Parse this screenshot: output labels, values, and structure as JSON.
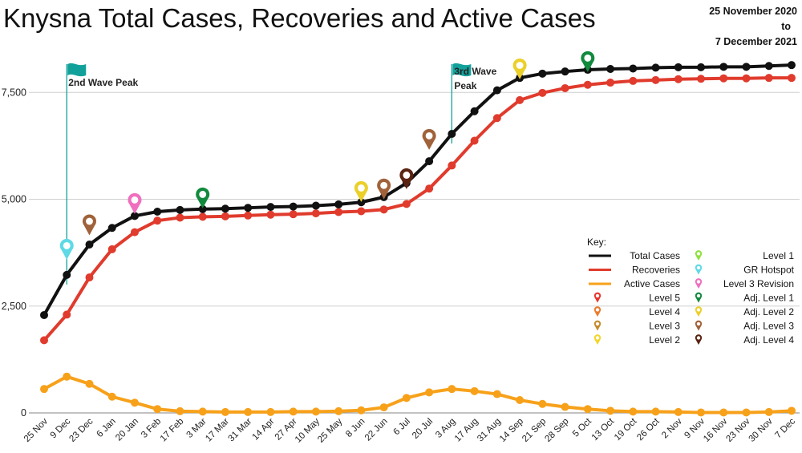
{
  "chart_data": {
    "type": "line",
    "title": "Knysna Total Cases, Recoveries and Active Cases",
    "date_range": {
      "start": "25 November 2020",
      "to": "to",
      "end": "7 December 2021"
    },
    "categories": [
      "25 Nov",
      "9 Dec",
      "23 Dec",
      "6 Jan",
      "20 Jan",
      "3 Feb",
      "17 Feb",
      "3 Mar",
      "17 Mar",
      "31 Mar",
      "14 Apr",
      "27 Apr",
      "10 May",
      "25 May",
      "8 Jun",
      "22 Jun",
      "6 Jul",
      "20 Jul",
      "3 Aug",
      "17 Aug",
      "31 Aug",
      "14 Sep",
      "21 Sep",
      "28 Sep",
      "5 Oct",
      "13 Oct",
      "19 Oct",
      "26 Oct",
      "2 Nov",
      "9 Nov",
      "16 Nov",
      "23 Nov",
      "30 Nov",
      "7 Dec"
    ],
    "yticks": [
      0,
      2500,
      5000,
      7500
    ],
    "ytick_labels": [
      "0",
      "2,500",
      "5,000",
      "7,500"
    ],
    "ylim": [
      0,
      8500
    ],
    "grid": "horizontal",
    "series": [
      {
        "name": "Total Cases",
        "color": "#111111",
        "values": [
          2290,
          3230,
          3940,
          4330,
          4610,
          4710,
          4750,
          4770,
          4780,
          4800,
          4820,
          4830,
          4850,
          4880,
          4930,
          5050,
          5380,
          5890,
          6530,
          7060,
          7550,
          7840,
          7940,
          7990,
          8030,
          8050,
          8060,
          8080,
          8090,
          8090,
          8100,
          8100,
          8120,
          8140
        ]
      },
      {
        "name": "Recoveries",
        "color": "#e03b2d",
        "values": [
          1700,
          2300,
          3170,
          3830,
          4230,
          4500,
          4570,
          4590,
          4600,
          4620,
          4640,
          4650,
          4670,
          4700,
          4720,
          4760,
          4890,
          5250,
          5790,
          6370,
          6900,
          7320,
          7490,
          7600,
          7680,
          7730,
          7770,
          7790,
          7810,
          7820,
          7830,
          7830,
          7840,
          7840
        ]
      },
      {
        "name": "Active Cases",
        "color": "#f7a11a",
        "values": [
          560,
          850,
          680,
          380,
          240,
          90,
          40,
          30,
          20,
          20,
          20,
          30,
          30,
          40,
          60,
          130,
          350,
          480,
          560,
          510,
          440,
          300,
          210,
          140,
          90,
          50,
          30,
          30,
          20,
          10,
          10,
          10,
          20,
          50
        ]
      }
    ],
    "annotations": [
      {
        "label": "2nd Wave Peak",
        "category": "9 Dec",
        "color": "#12a19a"
      },
      {
        "label": "3rd Wave Peak",
        "category": "3 Aug",
        "color": "#12a19a"
      }
    ],
    "markers": [
      {
        "level": "GR Hotspot",
        "category": "9 Dec",
        "value": 3850
      },
      {
        "level": "Adj. Level 3",
        "category": "23 Dec",
        "value": 4420
      },
      {
        "level": "Level 3 Revision",
        "category": "20 Jan",
        "value": 4920
      },
      {
        "level": "Adj. Level 1",
        "category": "3 Mar",
        "value": 5050
      },
      {
        "level": "Adj. Level 2",
        "category": "8 Jun",
        "value": 5200
      },
      {
        "level": "Adj. Level 3",
        "category": "22 Jun",
        "value": 5260
      },
      {
        "level": "Adj. Level 4",
        "category": "6 Jul",
        "value": 5500
      },
      {
        "level": "Adj. Level 3",
        "category": "20 Jul",
        "value": 6420
      },
      {
        "level": "Adj. Level 2",
        "category": "14 Sep",
        "value": 8070
      },
      {
        "level": "Adj. Level 1",
        "category": "5 Oct",
        "value": 8240
      }
    ],
    "legend": {
      "title": "Key:",
      "placement": "right",
      "left_items": [
        {
          "label": "Total Cases",
          "kind": "line",
          "color": "#111111"
        },
        {
          "label": "Recoveries",
          "kind": "line",
          "color": "#e03b2d"
        },
        {
          "label": "Active Cases",
          "kind": "line",
          "color": "#f7a11a"
        },
        {
          "label": "Level 5",
          "kind": "pin",
          "color": "#e8342a"
        },
        {
          "label": "Level 4",
          "kind": "pin",
          "color": "#ec7a2c"
        },
        {
          "label": "Level 3",
          "kind": "pin",
          "color": "#c48b2a"
        },
        {
          "label": "Level 2",
          "kind": "pin",
          "color": "#f3d628"
        }
      ],
      "right_items": [
        {
          "label": "Level 1",
          "kind": "pin",
          "color": "#8fe13b"
        },
        {
          "label": "GR Hotspot",
          "kind": "pin",
          "color": "#5fd9e6"
        },
        {
          "label": "Level 3 Revision",
          "kind": "pin",
          "color": "#f06fbf"
        },
        {
          "label": "Adj. Level 1",
          "kind": "pin",
          "color": "#128a3e"
        },
        {
          "label": "Adj. Level 2",
          "kind": "pin",
          "color": "#ebd02a"
        },
        {
          "label": "Adj. Level 3",
          "kind": "pin",
          "color": "#a0623a"
        },
        {
          "label": "Adj. Level 4",
          "kind": "pin",
          "color": "#5a2312"
        }
      ]
    }
  }
}
